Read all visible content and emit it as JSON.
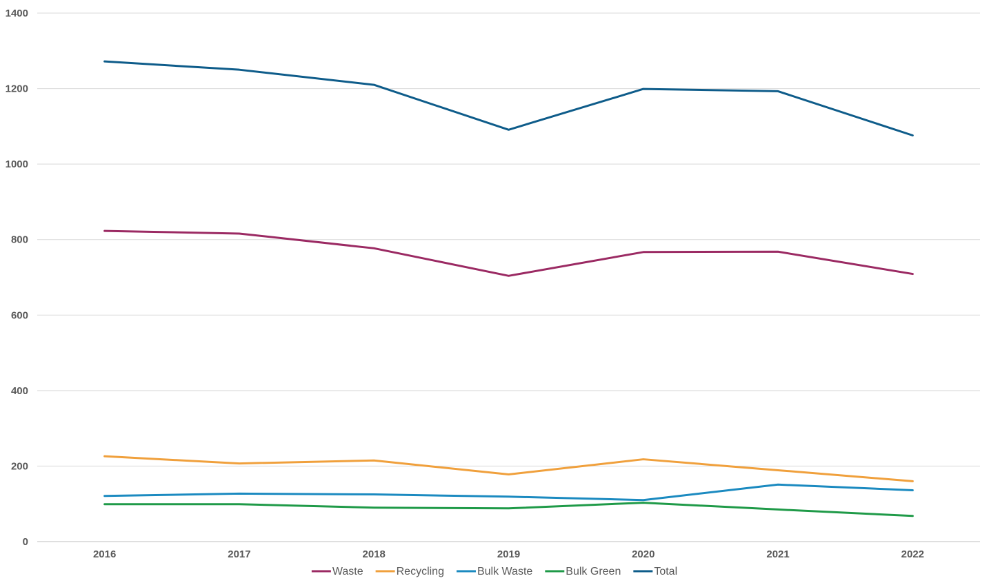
{
  "chart_data": {
    "type": "line",
    "title": "",
    "xlabel": "",
    "ylabel": "",
    "categories": [
      "2016",
      "2017",
      "2018",
      "2019",
      "2020",
      "2021",
      "2022"
    ],
    "ylim": [
      0,
      1400
    ],
    "yticks": [
      0,
      200,
      400,
      600,
      800,
      1000,
      1200,
      1400
    ],
    "grid": true,
    "legend_position": "bottom",
    "series": [
      {
        "name": "Waste",
        "color": "#9b2a63",
        "values": [
          823,
          816,
          777,
          704,
          767,
          768,
          709
        ]
      },
      {
        "name": "Recycling",
        "color": "#f0a03c",
        "values": [
          226,
          207,
          215,
          178,
          218,
          189,
          160
        ]
      },
      {
        "name": "Bulk Waste",
        "color": "#1b8ac0",
        "values": [
          121,
          127,
          125,
          119,
          110,
          151,
          136
        ]
      },
      {
        "name": "Bulk Green",
        "color": "#1f9a48",
        "values": [
          99,
          99,
          90,
          88,
          103,
          85,
          68
        ]
      },
      {
        "name": "Total",
        "color": "#0e5c8a",
        "values": [
          1272,
          1250,
          1210,
          1091,
          1199,
          1193,
          1076
        ]
      }
    ]
  }
}
